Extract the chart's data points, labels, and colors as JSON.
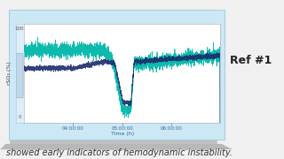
{
  "xlabel": "Time (h)",
  "ylabel": "rSO₂ (%)",
  "xlim": [
    3.0,
    7.0
  ],
  "ylim": [
    0,
    100
  ],
  "ytick_top": 100,
  "ytick_bottom": 0,
  "xtick_labels": [
    "04:00:00",
    "05:00:00",
    "06:00:00"
  ],
  "xtick_positions": [
    4.0,
    5.0,
    6.0
  ],
  "outer_bg": "#cde8f5",
  "plot_bg": "#ffffff",
  "line_teal_color": "#00b8a9",
  "line_dark_color": "#1a2a6c",
  "scrollbar_bg": "#ddeef8",
  "scrollbar_handle": "#c0d8e8",
  "shelf_color": "#c0c0c0",
  "page_bg": "#f0f0f0",
  "ref_text": "Ref #1",
  "ref_fontsize": 9,
  "caption": "showed early indicators of hemodynamic instability.",
  "caption_fontsize": 7,
  "xlabel_fontsize": 4.5,
  "ylabel_fontsize": 4.5,
  "tick_fontsize": 4.0,
  "border_color": "#a8cfe0"
}
